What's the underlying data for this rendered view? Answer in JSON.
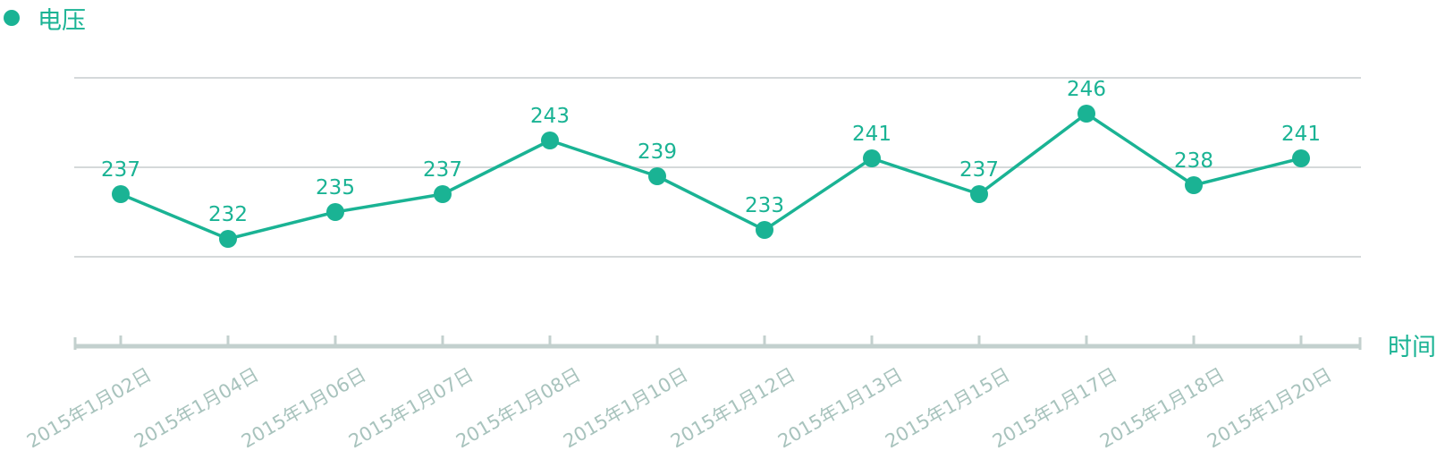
{
  "legend": {
    "label": "电压",
    "color": "#1ab394"
  },
  "x_axis_title": "时间",
  "colors": {
    "series": "#1ab394",
    "grid": "#d5d9da",
    "axis": "#c3d0ce",
    "tick_label": "#a8c3bd"
  },
  "chart_data": {
    "type": "line",
    "xlabel": "时间",
    "ylabel": "",
    "ylim": [
      220,
      250
    ],
    "grid": true,
    "legend_position": "top-left",
    "categories": [
      "2015年1月02日",
      "2015年1月04日",
      "2015年1月06日",
      "2015年1月07日",
      "2015年1月08日",
      "2015年1月10日",
      "2015年1月12日",
      "2015年1月13日",
      "2015年1月15日",
      "2015年1月17日",
      "2015年1月18日",
      "2015年1月20日"
    ],
    "series": [
      {
        "name": "电压",
        "values": [
          237,
          232,
          235,
          237,
          243,
          239,
          233,
          241,
          237,
          246,
          238,
          241
        ]
      }
    ]
  }
}
